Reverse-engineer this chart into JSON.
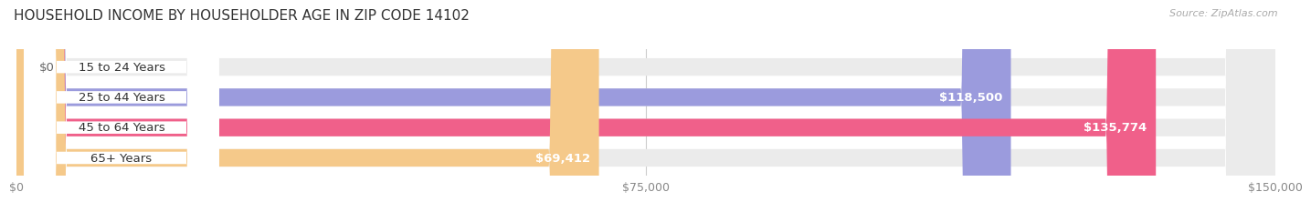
{
  "title": "HOUSEHOLD INCOME BY HOUSEHOLDER AGE IN ZIP CODE 14102",
  "source": "Source: ZipAtlas.com",
  "categories": [
    "15 to 24 Years",
    "25 to 44 Years",
    "45 to 64 Years",
    "65+ Years"
  ],
  "values": [
    0,
    118500,
    135774,
    69412
  ],
  "bar_colors": [
    "#5ecece",
    "#9b9bdd",
    "#f0608a",
    "#f5c98a"
  ],
  "track_color": "#ebebeb",
  "label_values": [
    "$0",
    "$118,500",
    "$135,774",
    "$69,412"
  ],
  "x_ticks": [
    0,
    75000,
    150000
  ],
  "x_tick_labels": [
    "$0",
    "$75,000",
    "$150,000"
  ],
  "xlim": [
    0,
    150000
  ],
  "background_color": "#ffffff",
  "bar_height": 0.58,
  "title_fontsize": 11,
  "label_fontsize": 9.5
}
